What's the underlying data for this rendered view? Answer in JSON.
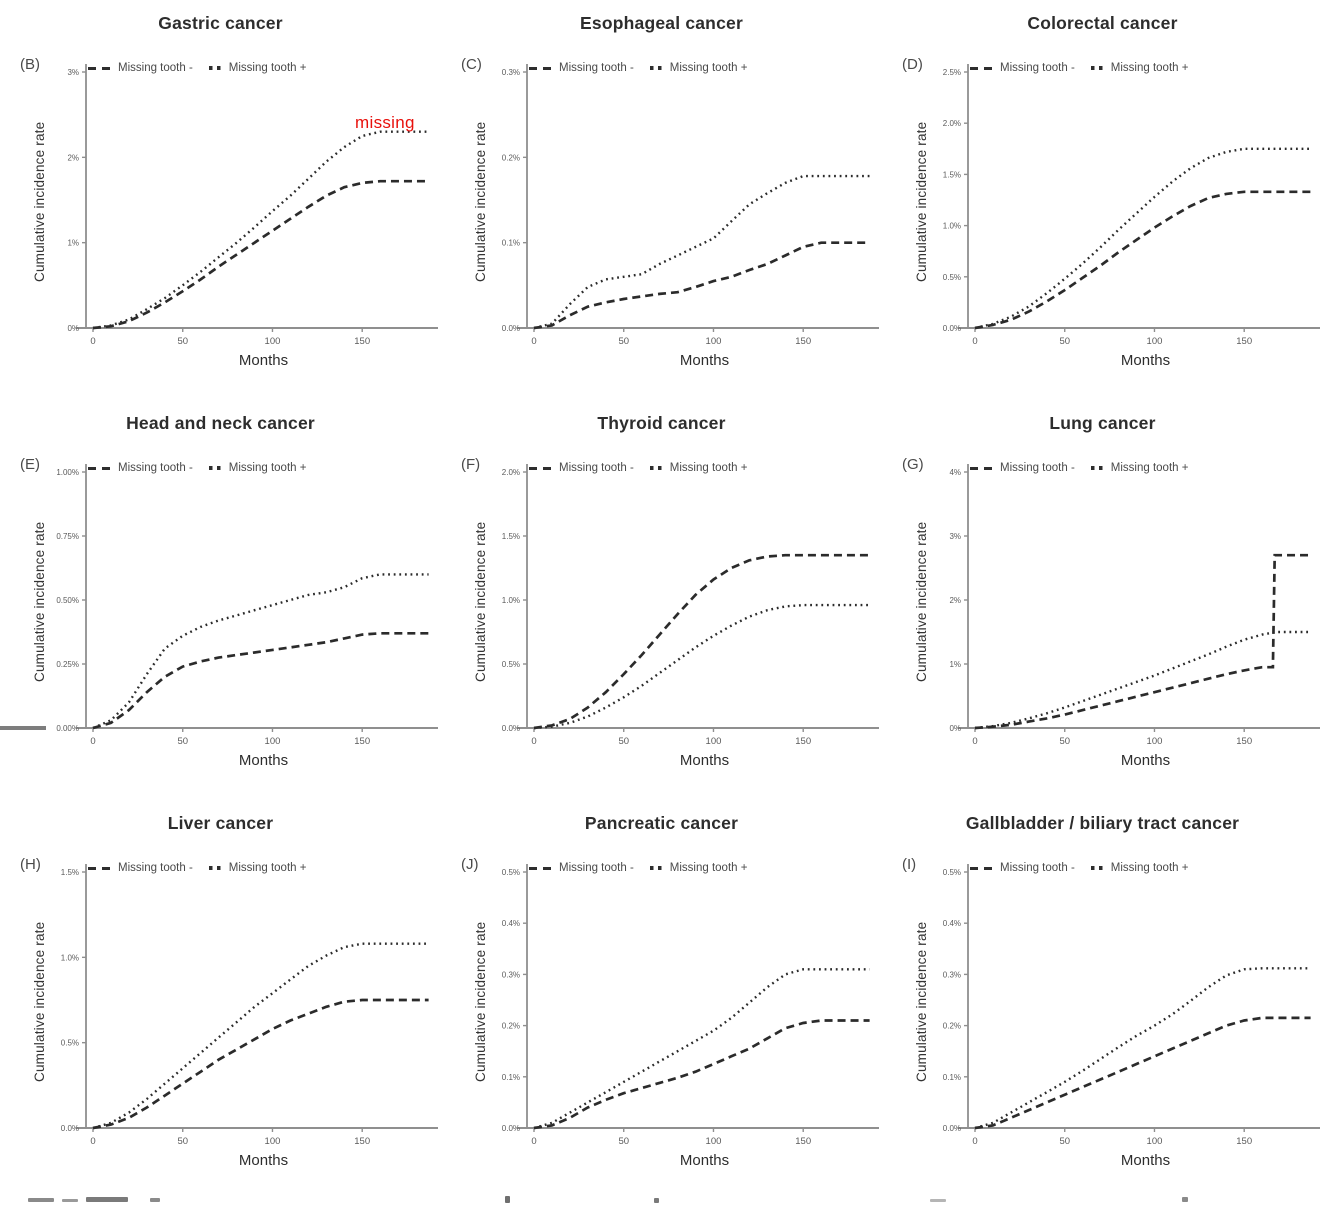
{
  "figure": {
    "background": "#ffffff"
  },
  "legend": {
    "minus_label": "Missing tooth -",
    "plus_label": "Missing tooth +"
  },
  "colors": {
    "curve": "#2b2b2b",
    "axis": "#8f8f8f",
    "tick_text": "#5a5a5a",
    "title_text": "#2d2d2d",
    "annotation_red": "#e8100c"
  },
  "chart_data": [
    {
      "type": "line",
      "panel_label": "(B)",
      "title": "Gastric cancer",
      "xlabel": "Months",
      "ylabel": "Cumulative incidence rate",
      "xlim": [
        0,
        190
      ],
      "ylim": [
        0,
        3
      ],
      "xticks": {
        "values": [
          0,
          50,
          100,
          150
        ],
        "labels": [
          "0",
          "50",
          "100",
          "150"
        ]
      },
      "yticks": {
        "values": [
          0,
          1,
          2,
          3
        ],
        "labels": [
          "0%",
          "1%",
          "2%",
          "3%"
        ]
      },
      "x": [
        0,
        10,
        20,
        30,
        40,
        50,
        60,
        70,
        80,
        90,
        100,
        110,
        120,
        130,
        140,
        150,
        160,
        170,
        180,
        187
      ],
      "series": [
        {
          "name": "Missing tooth -",
          "style": "dashed",
          "values": [
            0,
            0.02,
            0.08,
            0.18,
            0.3,
            0.43,
            0.57,
            0.72,
            0.86,
            1.0,
            1.14,
            1.28,
            1.42,
            1.55,
            1.65,
            1.7,
            1.72,
            1.72,
            1.72,
            1.72
          ]
        },
        {
          "name": "Missing tooth +",
          "style": "dotted",
          "values": [
            0,
            0.03,
            0.1,
            0.22,
            0.35,
            0.5,
            0.66,
            0.83,
            1.0,
            1.18,
            1.37,
            1.55,
            1.75,
            1.95,
            2.12,
            2.25,
            2.3,
            2.3,
            2.3,
            2.3
          ]
        }
      ],
      "annotation": {
        "text": "missing",
        "color": "#e8100c",
        "x_month": 146,
        "y_value": 2.42
      }
    },
    {
      "type": "line",
      "panel_label": "(C)",
      "title": "Esophageal cancer",
      "xlabel": "Months",
      "ylabel": "Cumulative incidence rate",
      "xlim": [
        0,
        190
      ],
      "ylim": [
        0,
        0.3
      ],
      "xticks": {
        "values": [
          0,
          50,
          100,
          150
        ],
        "labels": [
          "0",
          "50",
          "100",
          "150"
        ]
      },
      "yticks": {
        "values": [
          0,
          0.1,
          0.2,
          0.3
        ],
        "labels": [
          "0.0%",
          "0.1%",
          "0.2%",
          "0.3%"
        ]
      },
      "x": [
        0,
        10,
        20,
        30,
        40,
        50,
        60,
        70,
        80,
        90,
        100,
        110,
        120,
        130,
        140,
        150,
        160,
        170,
        180,
        187
      ],
      "series": [
        {
          "name": "Missing tooth -",
          "style": "dashed",
          "values": [
            0,
            0.003,
            0.015,
            0.025,
            0.03,
            0.034,
            0.037,
            0.04,
            0.042,
            0.048,
            0.055,
            0.06,
            0.068,
            0.075,
            0.085,
            0.095,
            0.1,
            0.1,
            0.1,
            0.1
          ]
        },
        {
          "name": "Missing tooth +",
          "style": "dotted",
          "values": [
            0,
            0.005,
            0.028,
            0.048,
            0.057,
            0.06,
            0.063,
            0.075,
            0.085,
            0.095,
            0.105,
            0.125,
            0.145,
            0.158,
            0.17,
            0.178,
            0.178,
            0.178,
            0.178,
            0.178
          ]
        }
      ]
    },
    {
      "type": "line",
      "panel_label": "(D)",
      "title": "Colorectal cancer",
      "xlabel": "Months",
      "ylabel": "Cumulative incidence rate",
      "xlim": [
        0,
        190
      ],
      "ylim": [
        0,
        2.5
      ],
      "xticks": {
        "values": [
          0,
          50,
          100,
          150
        ],
        "labels": [
          "0",
          "50",
          "100",
          "150"
        ]
      },
      "yticks": {
        "values": [
          0,
          0.5,
          1.0,
          1.5,
          2.0,
          2.5
        ],
        "labels": [
          "0.0%",
          "0.5%",
          "1.0%",
          "1.5%",
          "2.0%",
          "2.5%"
        ]
      },
      "x": [
        0,
        10,
        20,
        30,
        40,
        50,
        60,
        70,
        80,
        90,
        100,
        110,
        120,
        130,
        140,
        150,
        160,
        170,
        180,
        187
      ],
      "series": [
        {
          "name": "Missing tooth -",
          "style": "dashed",
          "values": [
            0,
            0.03,
            0.08,
            0.16,
            0.26,
            0.37,
            0.49,
            0.61,
            0.74,
            0.86,
            0.98,
            1.09,
            1.19,
            1.27,
            1.31,
            1.33,
            1.33,
            1.33,
            1.33,
            1.33
          ]
        },
        {
          "name": "Missing tooth +",
          "style": "dotted",
          "values": [
            0,
            0.04,
            0.11,
            0.21,
            0.34,
            0.48,
            0.63,
            0.79,
            0.96,
            1.12,
            1.28,
            1.43,
            1.56,
            1.66,
            1.72,
            1.75,
            1.75,
            1.75,
            1.75,
            1.75
          ]
        }
      ]
    },
    {
      "type": "line",
      "panel_label": "(E)",
      "title": "Head and neck cancer",
      "xlabel": "Months",
      "ylabel": "Cumulative incidence rate",
      "xlim": [
        0,
        190
      ],
      "ylim": [
        0,
        1.0
      ],
      "xticks": {
        "values": [
          0,
          50,
          100,
          150
        ],
        "labels": [
          "0",
          "50",
          "100",
          "150"
        ]
      },
      "yticks": {
        "values": [
          0,
          0.25,
          0.5,
          0.75,
          1.0
        ],
        "labels": [
          "0.00%",
          "0.25%",
          "0.50%",
          "0.75%",
          "1.00%"
        ]
      },
      "x": [
        0,
        10,
        20,
        30,
        40,
        50,
        60,
        70,
        80,
        90,
        100,
        110,
        120,
        130,
        140,
        150,
        160,
        170,
        180,
        187
      ],
      "series": [
        {
          "name": "Missing tooth -",
          "style": "dashed",
          "values": [
            0,
            0.02,
            0.07,
            0.14,
            0.2,
            0.24,
            0.26,
            0.275,
            0.285,
            0.295,
            0.305,
            0.315,
            0.325,
            0.335,
            0.35,
            0.365,
            0.37,
            0.37,
            0.37,
            0.37
          ]
        },
        {
          "name": "Missing tooth +",
          "style": "dotted",
          "values": [
            0,
            0.03,
            0.1,
            0.21,
            0.31,
            0.36,
            0.395,
            0.42,
            0.44,
            0.46,
            0.48,
            0.5,
            0.52,
            0.53,
            0.55,
            0.585,
            0.6,
            0.6,
            0.6,
            0.6
          ]
        }
      ]
    },
    {
      "type": "line",
      "panel_label": "(F)",
      "title": "Thyroid cancer",
      "xlabel": "Months",
      "ylabel": "Cumulative incidence rate",
      "xlim": [
        0,
        190
      ],
      "ylim": [
        0,
        2.0
      ],
      "xticks": {
        "values": [
          0,
          50,
          100,
          150
        ],
        "labels": [
          "0",
          "50",
          "100",
          "150"
        ]
      },
      "yticks": {
        "values": [
          0,
          0.5,
          1.0,
          1.5,
          2.0
        ],
        "labels": [
          "0.0%",
          "0.5%",
          "1.0%",
          "1.5%",
          "2.0%"
        ]
      },
      "x": [
        0,
        10,
        20,
        30,
        40,
        50,
        60,
        70,
        80,
        90,
        100,
        110,
        120,
        130,
        140,
        150,
        160,
        170,
        180,
        187
      ],
      "series": [
        {
          "name": "Missing tooth -",
          "style": "dashed",
          "values": [
            0,
            0.02,
            0.07,
            0.16,
            0.28,
            0.42,
            0.57,
            0.73,
            0.89,
            1.04,
            1.16,
            1.25,
            1.31,
            1.34,
            1.35,
            1.35,
            1.35,
            1.35,
            1.35,
            1.35
          ]
        },
        {
          "name": "Missing tooth +",
          "style": "dotted",
          "values": [
            0,
            0.01,
            0.04,
            0.09,
            0.16,
            0.24,
            0.33,
            0.43,
            0.53,
            0.63,
            0.72,
            0.8,
            0.87,
            0.92,
            0.95,
            0.96,
            0.96,
            0.96,
            0.96,
            0.96
          ]
        }
      ]
    },
    {
      "type": "line",
      "panel_label": "(G)",
      "title": "Lung cancer",
      "xlabel": "Months",
      "ylabel": "Cumulative incidence rate",
      "xlim": [
        0,
        190
      ],
      "ylim": [
        0,
        4
      ],
      "xticks": {
        "values": [
          0,
          50,
          100,
          150
        ],
        "labels": [
          "0",
          "50",
          "100",
          "150"
        ]
      },
      "yticks": {
        "values": [
          0,
          1,
          2,
          3,
          4
        ],
        "labels": [
          "0%",
          "1%",
          "2%",
          "3%",
          "4%"
        ]
      },
      "x": [
        0,
        10,
        20,
        30,
        40,
        50,
        60,
        70,
        80,
        90,
        100,
        110,
        120,
        130,
        140,
        150,
        160,
        166,
        167,
        180,
        187
      ],
      "series": [
        {
          "name": "Missing tooth -",
          "style": "dashed",
          "values": [
            0,
            0.02,
            0.05,
            0.1,
            0.15,
            0.21,
            0.28,
            0.35,
            0.42,
            0.49,
            0.56,
            0.63,
            0.7,
            0.77,
            0.84,
            0.9,
            0.95,
            0.95,
            2.7,
            2.7,
            2.7
          ]
        },
        {
          "name": "Missing tooth +",
          "style": "dotted",
          "values": [
            0,
            0.03,
            0.08,
            0.15,
            0.23,
            0.32,
            0.42,
            0.52,
            0.62,
            0.72,
            0.82,
            0.93,
            1.04,
            1.15,
            1.27,
            1.38,
            1.46,
            1.49,
            1.5,
            1.5,
            1.5
          ]
        }
      ]
    },
    {
      "type": "line",
      "panel_label": "(H)",
      "title": "Liver cancer",
      "xlabel": "Months",
      "ylabel": "Cumulative incidence rate",
      "xlim": [
        0,
        190
      ],
      "ylim": [
        0,
        1.5
      ],
      "xticks": {
        "values": [
          0,
          50,
          100,
          150
        ],
        "labels": [
          "0",
          "50",
          "100",
          "150"
        ]
      },
      "yticks": {
        "values": [
          0,
          0.5,
          1.0,
          1.5
        ],
        "labels": [
          "0.0%",
          "0.5%",
          "1.0%",
          "1.5%"
        ]
      },
      "x": [
        0,
        10,
        20,
        30,
        40,
        50,
        60,
        70,
        80,
        90,
        100,
        110,
        120,
        130,
        140,
        150,
        160,
        170,
        180,
        187
      ],
      "series": [
        {
          "name": "Missing tooth -",
          "style": "dashed",
          "values": [
            0,
            0.02,
            0.06,
            0.12,
            0.19,
            0.26,
            0.33,
            0.4,
            0.46,
            0.52,
            0.58,
            0.63,
            0.67,
            0.71,
            0.74,
            0.75,
            0.75,
            0.75,
            0.75,
            0.75
          ]
        },
        {
          "name": "Missing tooth +",
          "style": "dotted",
          "values": [
            0,
            0.03,
            0.09,
            0.17,
            0.26,
            0.35,
            0.44,
            0.53,
            0.62,
            0.71,
            0.79,
            0.87,
            0.95,
            1.01,
            1.06,
            1.08,
            1.08,
            1.08,
            1.08,
            1.08
          ]
        }
      ]
    },
    {
      "type": "line",
      "panel_label": "(J)",
      "title": "Pancreatic cancer",
      "xlabel": "Months",
      "ylabel": "Cumulative incidence rate",
      "xlim": [
        0,
        190
      ],
      "ylim": [
        0,
        0.5
      ],
      "xticks": {
        "values": [
          0,
          50,
          100,
          150
        ],
        "labels": [
          "0",
          "50",
          "100",
          "150"
        ]
      },
      "yticks": {
        "values": [
          0,
          0.1,
          0.2,
          0.3,
          0.4,
          0.5
        ],
        "labels": [
          "0.0%",
          "0.1%",
          "0.2%",
          "0.3%",
          "0.4%",
          "0.5%"
        ]
      },
      "x": [
        0,
        10,
        20,
        30,
        40,
        50,
        60,
        70,
        80,
        90,
        100,
        110,
        120,
        130,
        140,
        150,
        160,
        170,
        180,
        187
      ],
      "series": [
        {
          "name": "Missing tooth -",
          "style": "dashed",
          "values": [
            0,
            0.005,
            0.02,
            0.04,
            0.055,
            0.068,
            0.078,
            0.088,
            0.098,
            0.11,
            0.125,
            0.14,
            0.155,
            0.175,
            0.195,
            0.205,
            0.21,
            0.21,
            0.21,
            0.21
          ]
        },
        {
          "name": "Missing tooth +",
          "style": "dotted",
          "values": [
            0,
            0.01,
            0.03,
            0.05,
            0.07,
            0.09,
            0.11,
            0.13,
            0.15,
            0.17,
            0.19,
            0.215,
            0.245,
            0.275,
            0.3,
            0.31,
            0.31,
            0.31,
            0.31,
            0.31
          ]
        }
      ]
    },
    {
      "type": "line",
      "panel_label": "(I)",
      "title": "Gallbladder / biliary tract cancer",
      "xlabel": "Months",
      "ylabel": "Cumulative incidence rate",
      "xlim": [
        0,
        190
      ],
      "ylim": [
        0,
        0.5
      ],
      "xticks": {
        "values": [
          0,
          50,
          100,
          150
        ],
        "labels": [
          "0",
          "50",
          "100",
          "150"
        ]
      },
      "yticks": {
        "values": [
          0,
          0.1,
          0.2,
          0.3,
          0.4,
          0.5
        ],
        "labels": [
          "0.0%",
          "0.1%",
          "0.2%",
          "0.3%",
          "0.4%",
          "0.5%"
        ]
      },
      "x": [
        0,
        10,
        20,
        30,
        40,
        50,
        60,
        70,
        80,
        90,
        100,
        110,
        120,
        130,
        140,
        150,
        160,
        170,
        180,
        187
      ],
      "series": [
        {
          "name": "Missing tooth -",
          "style": "dashed",
          "values": [
            0,
            0.005,
            0.02,
            0.035,
            0.05,
            0.065,
            0.08,
            0.095,
            0.11,
            0.125,
            0.14,
            0.155,
            0.17,
            0.185,
            0.2,
            0.21,
            0.215,
            0.215,
            0.215,
            0.215
          ]
        },
        {
          "name": "Missing tooth +",
          "style": "dotted",
          "values": [
            0,
            0.01,
            0.03,
            0.05,
            0.07,
            0.09,
            0.112,
            0.135,
            0.158,
            0.18,
            0.2,
            0.222,
            0.248,
            0.275,
            0.298,
            0.31,
            0.312,
            0.312,
            0.312,
            0.312
          ]
        }
      ]
    }
  ]
}
